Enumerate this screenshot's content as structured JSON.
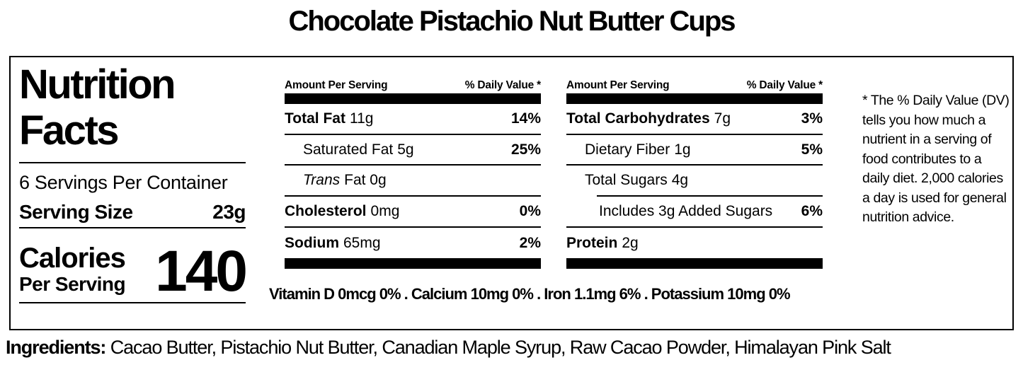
{
  "title": "Chocolate Pistachio Nut Butter Cups",
  "panel": {
    "heading_line1": "Nutrition",
    "heading_line2": "Facts",
    "servings_per_container": "6 Servings Per Container",
    "serving_size": {
      "label": "Serving Size",
      "value": "23g"
    },
    "calories": {
      "label": "Calories",
      "sublabel": "Per Serving",
      "value": "140"
    }
  },
  "nutrient_columns": [
    {
      "header": {
        "left": "Amount Per Serving",
        "right": "% Daily Value *"
      },
      "rows": [
        {
          "name": "Total Fat",
          "amount": "11g",
          "dv": "14%"
        },
        {
          "name": "Saturated Fat",
          "amount": "5g",
          "dv": "25%"
        },
        {
          "name": "Trans",
          "amount": "Fat 0g",
          "dv": ""
        },
        {
          "name": "Cholesterol",
          "amount": "0mg",
          "dv": "0%"
        },
        {
          "name": "Sodium",
          "amount": "65mg",
          "dv": "2%"
        }
      ]
    },
    {
      "header": {
        "left": "Amount Per Serving",
        "right": "% Daily Value *"
      },
      "rows": [
        {
          "name": "Total Carbohydrates",
          "amount": "7g",
          "dv": "3%"
        },
        {
          "name": "Dietary Fiber",
          "amount": "1g",
          "dv": "5%"
        },
        {
          "name": "Total Sugars",
          "amount": "4g",
          "dv": ""
        },
        {
          "name": "Includes 3g Added Sugars",
          "amount": "",
          "dv": "6%"
        },
        {
          "name": "Protein",
          "amount": "2g",
          "dv": ""
        }
      ]
    }
  ],
  "footnote": "* The % Daily Value (DV) tells you how much a nutrient in a serving of food contributes to a daily diet. 2,000 calories a day is used for general nutrition advice.",
  "micronutrients_line": "Vitamin D 0mcg 0% . Calcium 10mg 0% . Iron 1.1mg 6% . Potassium 10mg 0%",
  "ingredients": {
    "label": "Ingredients:",
    "value": " Cacao Butter, Pistachio Nut Butter, Canadian Maple Syrup, Raw Cacao Powder, Himalayan Pink Salt"
  }
}
